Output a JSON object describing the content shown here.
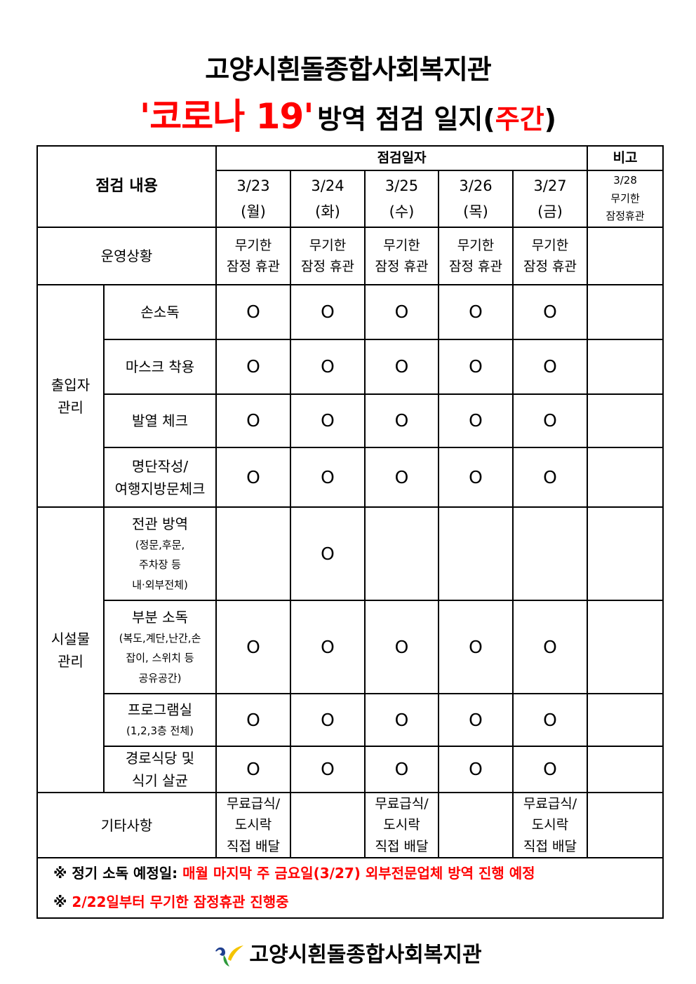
{
  "title": {
    "org": "고양시흰돌종합사회복지관",
    "red_part": "'코로나 19'",
    "black_part": "방역 점검 일지(",
    "red_paren": "주간",
    "close_paren": ")"
  },
  "table": {
    "header_content": "점검 내용",
    "header_dates": "점검일자",
    "header_note": "비고",
    "dates": [
      "3/23\n(월)",
      "3/24\n(화)",
      "3/25\n(수)",
      "3/26\n(목)",
      "3/27\n(금)"
    ],
    "note_date": "3/28\n무기한\n잠정휴관",
    "operation": {
      "label": "운영상황",
      "values": [
        "무기한\n잠정 휴관",
        "무기한\n잠정 휴관",
        "무기한\n잠정 휴관",
        "무기한\n잠정 휴관",
        "무기한\n잠정 휴관"
      ],
      "note": ""
    },
    "groups": [
      {
        "label": "출입자\n관리",
        "items": [
          {
            "label": "손소독",
            "sub": "",
            "marks": [
              "O",
              "O",
              "O",
              "O",
              "O"
            ]
          },
          {
            "label": "마스크 착용",
            "sub": "",
            "marks": [
              "O",
              "O",
              "O",
              "O",
              "O"
            ]
          },
          {
            "label": "발열 체크",
            "sub": "",
            "marks": [
              "O",
              "O",
              "O",
              "O",
              "O"
            ]
          },
          {
            "label": "명단작성/\n여행지방문체크",
            "sub": "",
            "marks": [
              "O",
              "O",
              "O",
              "O",
              "O"
            ]
          }
        ]
      },
      {
        "label": "시설물\n관리",
        "items": [
          {
            "label": "전관 방역",
            "sub": "(정문,후문,\n주차장 등\n내·외부전체)",
            "marks": [
              "",
              "O",
              "",
              "",
              ""
            ]
          },
          {
            "label": "부분 소독",
            "sub": "(복도,계단,난간,손\n잡이, 스위치 등\n공유공간)",
            "marks": [
              "O",
              "O",
              "O",
              "O",
              "O"
            ]
          },
          {
            "label": "프로그램실",
            "sub": "(1,2,3층 전체)",
            "marks": [
              "O",
              "O",
              "O",
              "O",
              "O"
            ]
          },
          {
            "label": "경로식당 및\n식기 살균",
            "sub": "",
            "marks": [
              "O",
              "O",
              "O",
              "O",
              "O"
            ]
          }
        ]
      }
    ],
    "misc": {
      "label": "기타사항",
      "values": [
        "무료급식/\n도시락\n직접 배달",
        "",
        "무료급식/\n도시락\n직접 배달",
        "",
        "무료급식/\n도시락\n직접 배달"
      ]
    },
    "notes": [
      {
        "prefix": "※ 정기 소독 예정일: ",
        "red": "매월 마지막 주 금요일(3/27) 외부전문업체 방역 진행 예정"
      },
      {
        "prefix": "※ ",
        "red": "2/22일부터 무기한 잠정휴관 진행중"
      }
    ]
  },
  "footer": {
    "org": "고양시흰돌종합사회복지관",
    "logo_icon": "welfare-center-logo-icon"
  },
  "colors": {
    "red": "#ff0000",
    "logo_blue": "#1f3f8f",
    "logo_yellow": "#f5c400",
    "logo_green": "#2e9a3c"
  }
}
